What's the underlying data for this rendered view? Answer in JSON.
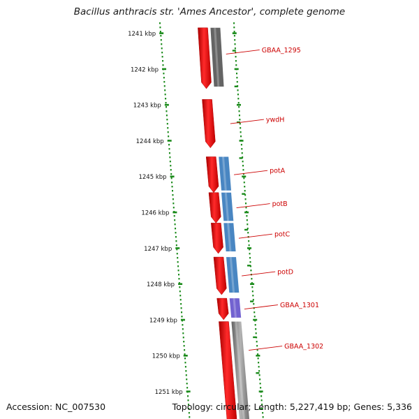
{
  "title": "Bacillus anthracis str. 'Ames Ancestor', complete genome",
  "footer": {
    "accession_label": "Accession: ",
    "accession": "NC_007530",
    "topology": "Topology: circular;",
    "length": "Length: 5,227,419 bp;",
    "genes": "Genes: 5,336"
  },
  "ticks": [
    {
      "label": "1241 kbp",
      "kbp": 1241
    },
    {
      "label": "1242 kbp",
      "kbp": 1242
    },
    {
      "label": "1243 kbp",
      "kbp": 1243
    },
    {
      "label": "1244 kbp",
      "kbp": 1244
    },
    {
      "label": "1245 kbp",
      "kbp": 1245
    },
    {
      "label": "1246 kbp",
      "kbp": 1246
    },
    {
      "label": "1247 kbp",
      "kbp": 1247
    },
    {
      "label": "1248 kbp",
      "kbp": 1248
    },
    {
      "label": "1249 kbp",
      "kbp": 1249
    },
    {
      "label": "1250 kbp",
      "kbp": 1250
    },
    {
      "label": "1251 kbp",
      "kbp": 1251
    }
  ],
  "genes": [
    {
      "name": "GBAA_1295",
      "start_kbp": 1240.85,
      "end_kbp": 1242.55,
      "cog_color": "#555555"
    },
    {
      "name": "ywdH",
      "start_kbp": 1242.85,
      "end_kbp": 1244.2,
      "cog_color": ""
    },
    {
      "name": "potA",
      "start_kbp": 1244.45,
      "end_kbp": 1245.45,
      "cog_color": "#3f7fbf"
    },
    {
      "name": "potB",
      "start_kbp": 1245.45,
      "end_kbp": 1246.3,
      "cog_color": "#3f7fbf"
    },
    {
      "name": "potC",
      "start_kbp": 1246.3,
      "end_kbp": 1247.15,
      "cog_color": "#3f7fbf"
    },
    {
      "name": "potD",
      "start_kbp": 1247.25,
      "end_kbp": 1248.3,
      "cog_color": "#3f7fbf"
    },
    {
      "name": "GBAA_1301",
      "start_kbp": 1248.4,
      "end_kbp": 1249.0,
      "cog_color": "#6a5acd"
    },
    {
      "name": "GBAA_1302",
      "start_kbp": 1249.05,
      "end_kbp": 1251.8,
      "cog_color": "#bbbbbb"
    }
  ],
  "colors": {
    "gene": "#ff1a1a",
    "label": "#cc0000",
    "tick": "#1a8a1a",
    "backbone": "#777777"
  }
}
